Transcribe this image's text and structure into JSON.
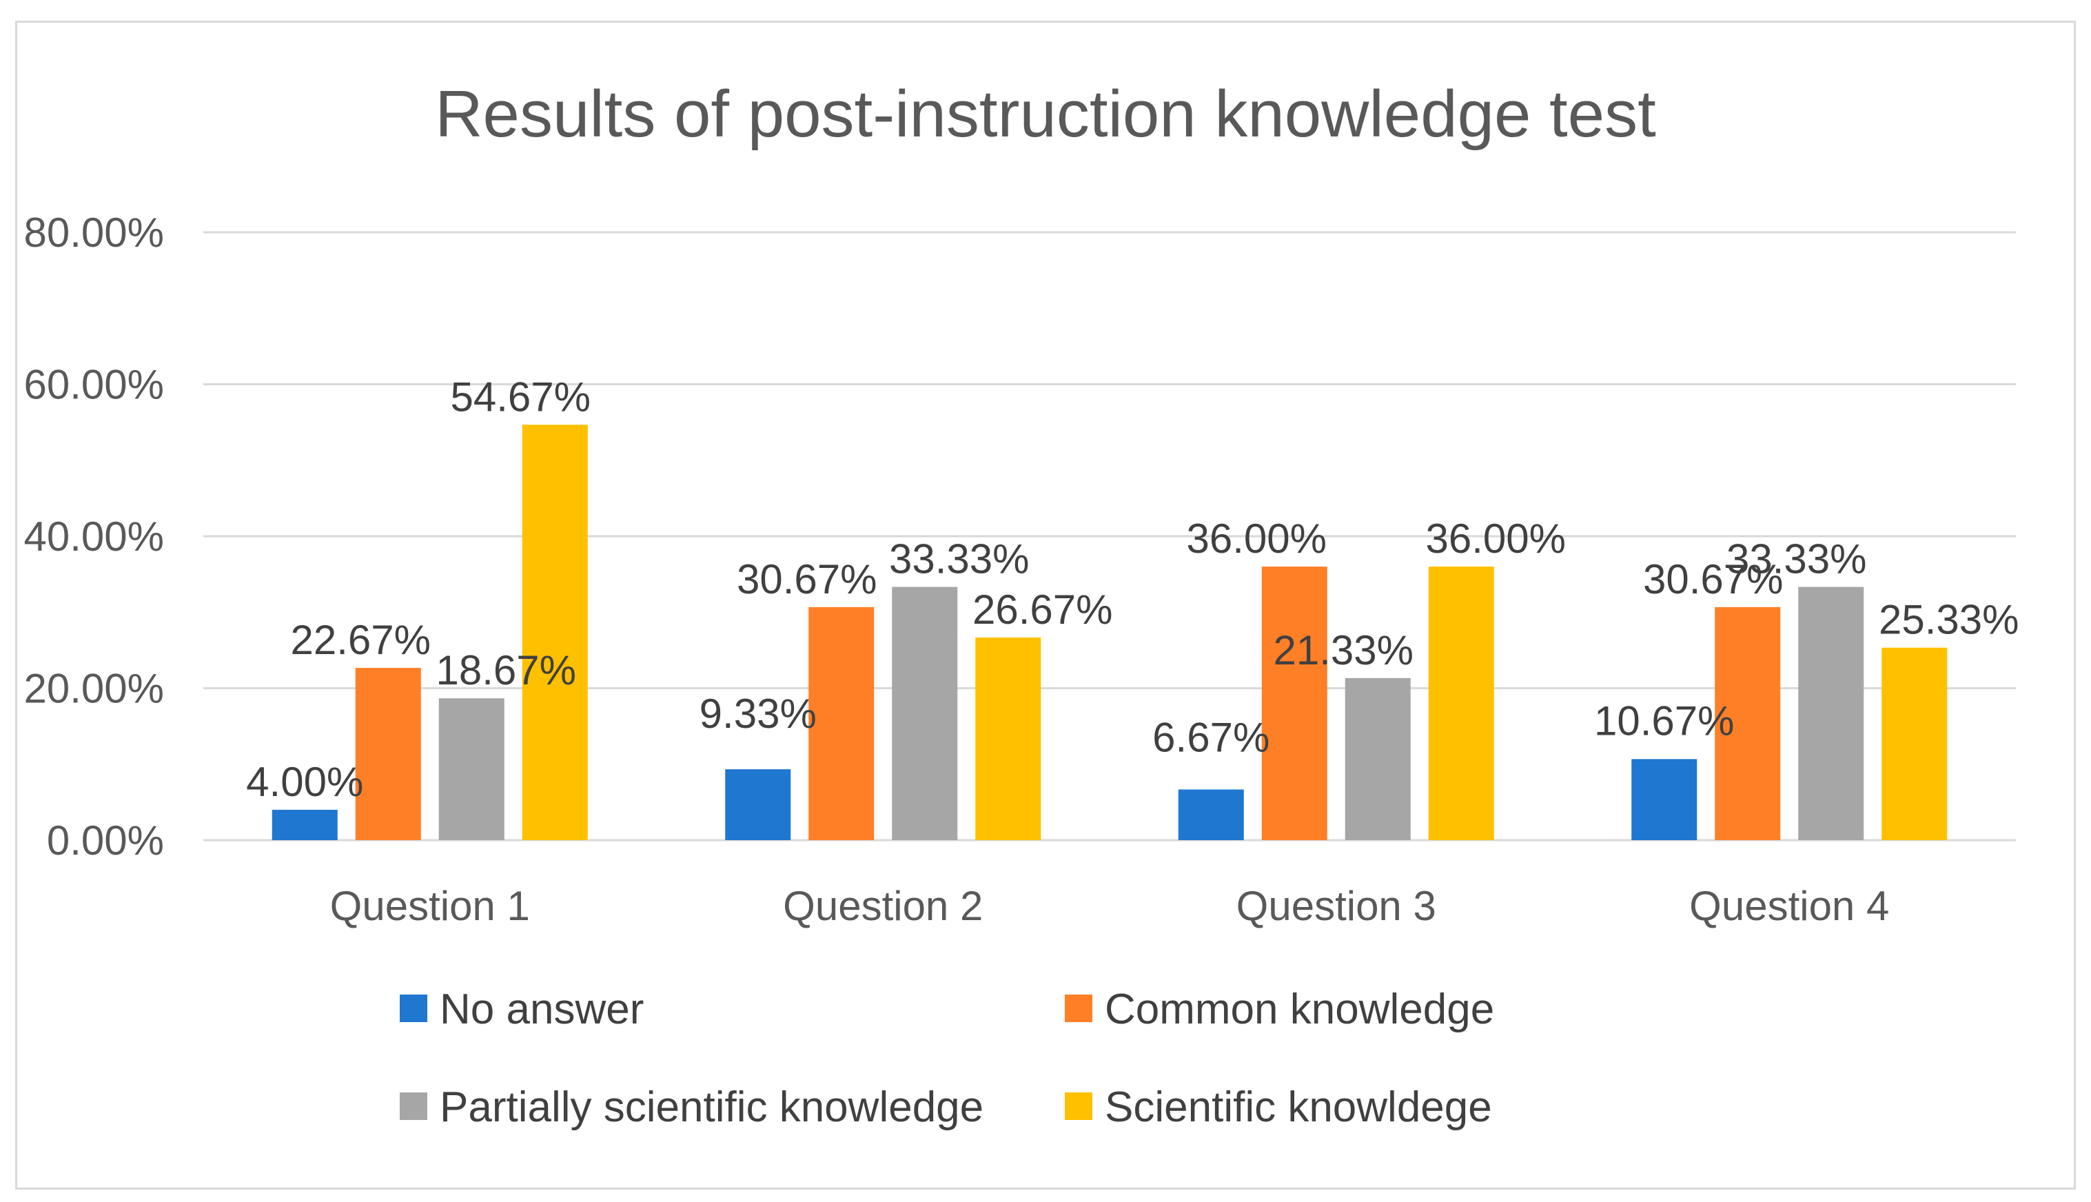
{
  "chart_data": {
    "type": "bar",
    "title": "Results of post-instruction knowledge test",
    "categories": [
      "Question 1",
      "Question  2",
      "Question 3",
      "Question 4"
    ],
    "series": [
      {
        "name": "No answer",
        "color": "#1f77d0",
        "values": [
          4.0,
          9.33,
          6.67,
          10.67
        ],
        "labels": [
          "4.00%",
          "9.33%",
          "6.67%",
          "10.67%"
        ]
      },
      {
        "name": "Common knowledge",
        "color": "#ff7f27",
        "values": [
          22.67,
          30.67,
          36.0,
          30.67
        ],
        "labels": [
          "22.67%",
          "30.67%",
          "36.00%",
          "30.67%"
        ]
      },
      {
        "name": "Partially scientific knowledge",
        "color": "#a6a6a6",
        "values": [
          18.67,
          33.33,
          21.33,
          33.33
        ],
        "labels": [
          "18.67%",
          "33.33%",
          "21.33%",
          "33.33%"
        ]
      },
      {
        "name": "Scientific knowldege",
        "color": "#ffc000",
        "values": [
          54.67,
          26.67,
          36.0,
          25.33
        ],
        "labels": [
          "54.67%",
          "26.67%",
          "36.00%",
          "25.33%"
        ]
      }
    ],
    "ylim": [
      0,
      80
    ],
    "yticks": [
      0,
      20,
      40,
      60,
      80
    ],
    "ytick_labels": [
      "0.00%",
      "20.00%",
      "40.00%",
      "60.00%",
      "80.00%"
    ],
    "grid": true,
    "legend_position": "bottom"
  }
}
